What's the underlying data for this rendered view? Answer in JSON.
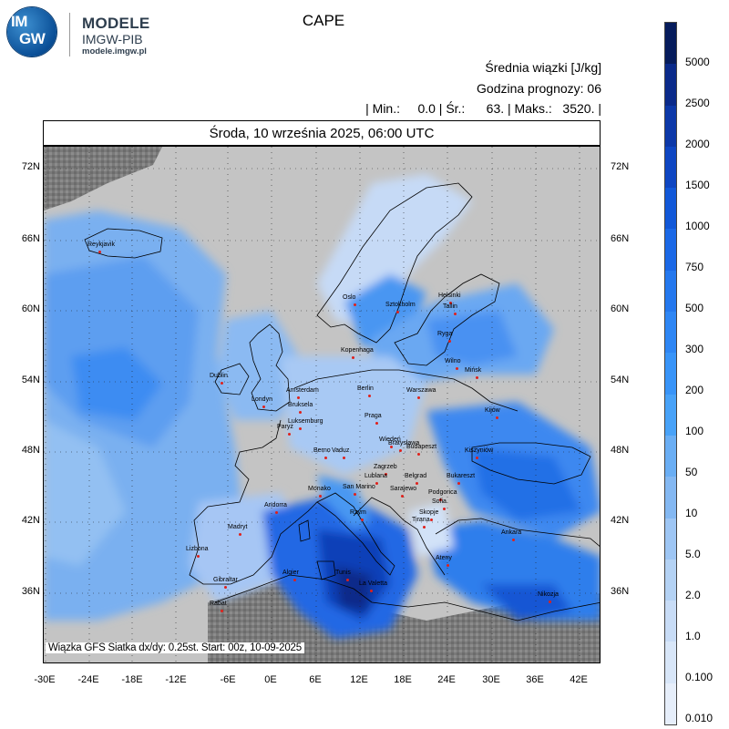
{
  "logo": {
    "line1": "IM",
    "line2": "GW",
    "brand": "MODELE",
    "subbrand": "IMGW-PIB",
    "url": "modele.imgw.pl"
  },
  "title": "CAPE",
  "info": {
    "line1": "Średnia wiązki [J/kg]",
    "line2": "Godzina prognozy: 06",
    "line3": "| Min.:     0.0 | Śr.:      63. | Maks.:   3520. |"
  },
  "date_header": "Środa, 10 września 2025, 06:00 UTC",
  "footer_note": "Wiązka GFS Siatka dx/dy: 0.25st. Start: 00z, 10-09-2025",
  "lat_labels": [
    "72N",
    "66N",
    "60N",
    "54N",
    "48N",
    "42N",
    "36N"
  ],
  "lon_labels": [
    "-30E",
    "-24E",
    "-18E",
    "-12E",
    "-6E",
    "0E",
    "6E",
    "12E",
    "18E",
    "24E",
    "30E",
    "36E",
    "42E"
  ],
  "cities": [
    {
      "name": "Reykjavik"
    },
    {
      "name": "Oslo"
    },
    {
      "name": "Sztokholm"
    },
    {
      "name": "Helsinki"
    },
    {
      "name": "Tallin"
    },
    {
      "name": "Ryga"
    },
    {
      "name": "Kopenhaga"
    },
    {
      "name": "Wilno"
    },
    {
      "name": "Mińsk"
    },
    {
      "name": "Dublin"
    },
    {
      "name": "Londyn"
    },
    {
      "name": "Amsterdam"
    },
    {
      "name": "Bruksela"
    },
    {
      "name": "Berlin"
    },
    {
      "name": "Warszawa"
    },
    {
      "name": "Luksemburg"
    },
    {
      "name": "Paryż"
    },
    {
      "name": "Praga"
    },
    {
      "name": "Kijów"
    },
    {
      "name": "Wiedeń"
    },
    {
      "name": "Bratysława"
    },
    {
      "name": "Budapeszt"
    },
    {
      "name": "Berno"
    },
    {
      "name": "Vaduz"
    },
    {
      "name": "Kiszyniów"
    },
    {
      "name": "Zagrzeb"
    },
    {
      "name": "Lublana"
    },
    {
      "name": "Belgrad"
    },
    {
      "name": "Bukareszt"
    },
    {
      "name": "Monako"
    },
    {
      "name": "San Marino"
    },
    {
      "name": "Sarajewo"
    },
    {
      "name": "Andorra"
    },
    {
      "name": "Podgorica"
    },
    {
      "name": "Sofia"
    },
    {
      "name": "Skopje"
    },
    {
      "name": "Tirana"
    },
    {
      "name": "Rzym"
    },
    {
      "name": "Madryt"
    },
    {
      "name": "Ankara"
    },
    {
      "name": "Lizbona"
    },
    {
      "name": "Ateny"
    },
    {
      "name": "Algier"
    },
    {
      "name": "Tunis"
    },
    {
      "name": "La Valetta"
    },
    {
      "name": "Gibraltar"
    },
    {
      "name": "Nikozja"
    },
    {
      "name": "Rabat"
    }
  ],
  "legend": {
    "labels": [
      "5000",
      "2500",
      "2000",
      "1500",
      "1000",
      "750",
      "500",
      "300",
      "200",
      "100",
      "50",
      "10",
      "5.0",
      "2.0",
      "1.0",
      "0.100",
      "0.010"
    ],
    "colors": [
      "#061c5c",
      "#0a2a8a",
      "#0c38a8",
      "#0e46c2",
      "#1158d8",
      "#1a68e6",
      "#2478ee",
      "#2e86f4",
      "#3894f8",
      "#48a2f8",
      "#6aaef4",
      "#84b8f2",
      "#9ec6f4",
      "#b4d2f4",
      "#c8dcf6",
      "#d8e6f8",
      "#e6eefa"
    ]
  }
}
